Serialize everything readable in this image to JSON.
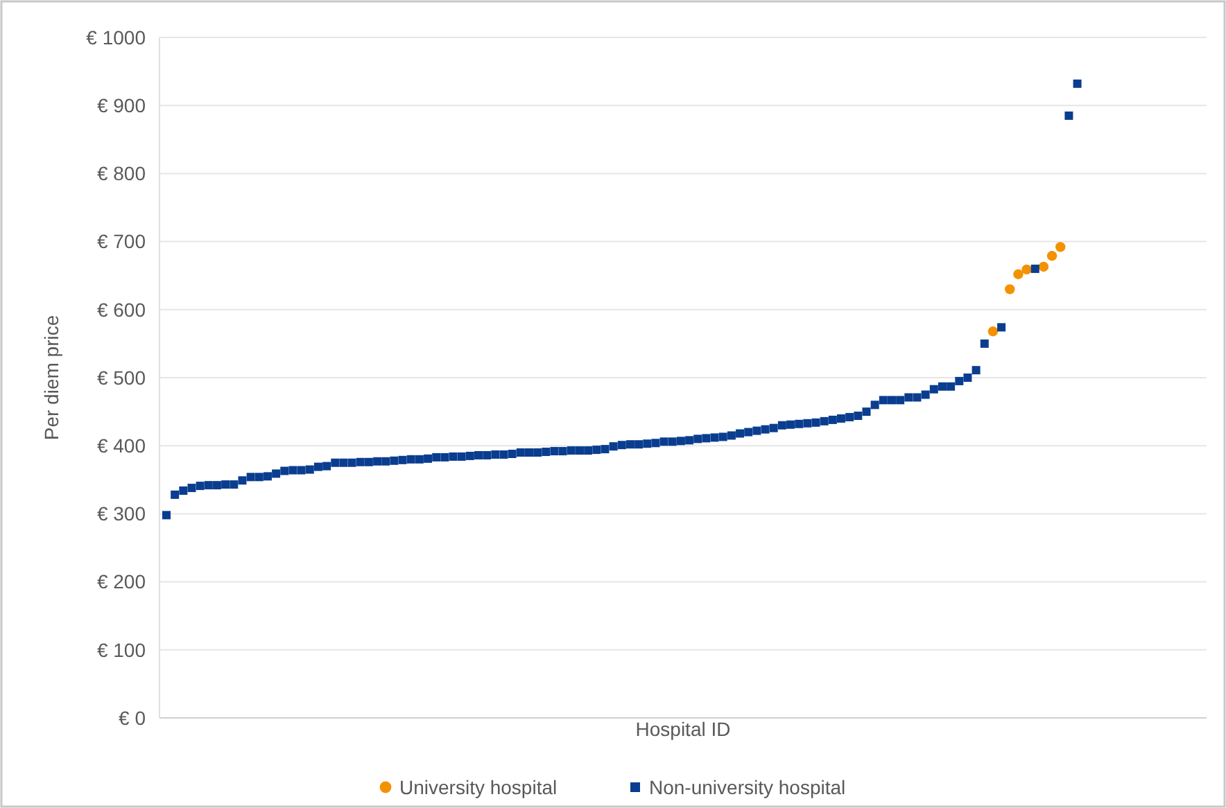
{
  "chart_data": {
    "type": "scatter",
    "xlabel": "Hospital ID",
    "ylabel": "Per diem price",
    "categories": [
      null,
      null,
      null,
      null,
      null,
      null,
      null,
      null,
      null,
      null,
      null,
      null,
      null,
      null,
      null,
      null,
      null,
      null,
      null,
      null,
      null,
      null,
      null,
      null,
      null,
      null,
      null,
      null,
      null,
      null,
      null,
      null,
      null,
      null,
      null,
      null,
      null,
      null,
      null,
      null,
      null,
      null,
      null,
      null,
      null,
      null,
      null,
      null,
      null,
      null,
      null,
      null,
      null,
      null,
      null,
      null,
      null,
      null,
      null,
      null,
      null,
      null,
      null,
      null,
      null,
      null,
      null,
      null,
      null,
      null,
      null,
      null,
      null,
      null,
      null,
      null,
      null,
      null,
      null,
      null,
      null,
      null,
      null,
      null,
      null,
      null,
      null,
      null,
      null,
      null,
      null,
      null,
      null,
      null,
      null,
      null,
      null,
      null,
      null,
      null,
      null,
      null,
      null,
      null,
      null,
      null,
      null,
      null,
      null,
      null,
      null,
      null,
      null,
      null,
      null,
      null,
      null,
      null,
      null,
      null,
      null,
      null,
      null,
      null
    ],
    "series": [
      {
        "name": "University hospital",
        "color": "#f39200",
        "marker": "circle",
        "values": [
          null,
          null,
          null,
          null,
          null,
          null,
          null,
          null,
          null,
          null,
          null,
          null,
          null,
          null,
          null,
          null,
          null,
          null,
          null,
          null,
          null,
          null,
          null,
          null,
          null,
          null,
          null,
          null,
          null,
          null,
          null,
          null,
          null,
          null,
          null,
          null,
          null,
          null,
          null,
          null,
          null,
          null,
          null,
          null,
          null,
          null,
          null,
          null,
          null,
          null,
          null,
          null,
          null,
          null,
          null,
          null,
          null,
          null,
          null,
          null,
          null,
          null,
          null,
          null,
          null,
          null,
          null,
          null,
          null,
          null,
          null,
          null,
          null,
          null,
          null,
          null,
          null,
          null,
          null,
          null,
          null,
          null,
          null,
          null,
          null,
          null,
          null,
          null,
          null,
          null,
          null,
          null,
          null,
          null,
          null,
          null,
          null,
          null,
          568,
          null,
          630,
          652,
          659,
          null,
          663,
          679,
          692,
          null,
          null,
          null,
          null,
          null,
          null,
          null,
          null,
          null,
          null,
          null,
          null,
          null,
          null,
          null,
          null,
          null
        ]
      },
      {
        "name": "Non-university hospital",
        "color": "#0a3d8f",
        "marker": "square",
        "values": [
          298,
          328,
          334,
          338,
          341,
          342,
          342,
          343,
          343,
          349,
          354,
          354,
          355,
          359,
          363,
          364,
          364,
          365,
          369,
          370,
          375,
          375,
          375,
          376,
          376,
          377,
          377,
          378,
          379,
          380,
          380,
          381,
          383,
          383,
          384,
          384,
          385,
          386,
          386,
          387,
          387,
          388,
          390,
          390,
          390,
          391,
          392,
          392,
          393,
          393,
          393,
          394,
          395,
          399,
          401,
          402,
          402,
          403,
          404,
          406,
          406,
          407,
          408,
          410,
          411,
          412,
          413,
          415,
          418,
          420,
          422,
          424,
          426,
          430,
          431,
          432,
          433,
          434,
          436,
          438,
          440,
          442,
          444,
          450,
          460,
          467,
          467,
          467,
          471,
          471,
          475,
          483,
          487,
          487,
          495,
          500,
          511,
          550,
          null,
          574,
          null,
          null,
          null,
          660,
          null,
          null,
          null,
          885,
          932,
          null,
          null,
          null,
          null,
          null,
          null,
          null,
          null,
          null,
          null,
          null,
          null,
          null,
          null,
          null
        ]
      }
    ],
    "ylim": [
      0,
      1000
    ],
    "yticks": [
      {
        "value": 0,
        "label": "€ 0"
      },
      {
        "value": 100,
        "label": "€ 100"
      },
      {
        "value": 200,
        "label": "€ 200"
      },
      {
        "value": 300,
        "label": "€ 300"
      },
      {
        "value": 400,
        "label": "€ 400"
      },
      {
        "value": 500,
        "label": "€ 500"
      },
      {
        "value": 600,
        "label": "€ 600"
      },
      {
        "value": 700,
        "label": "€ 700"
      },
      {
        "value": 800,
        "label": "€ 800"
      },
      {
        "value": 900,
        "label": "€ 900"
      },
      {
        "value": 1000,
        "label": "€ 1000"
      }
    ],
    "grid": "y",
    "legend": "bottom"
  }
}
